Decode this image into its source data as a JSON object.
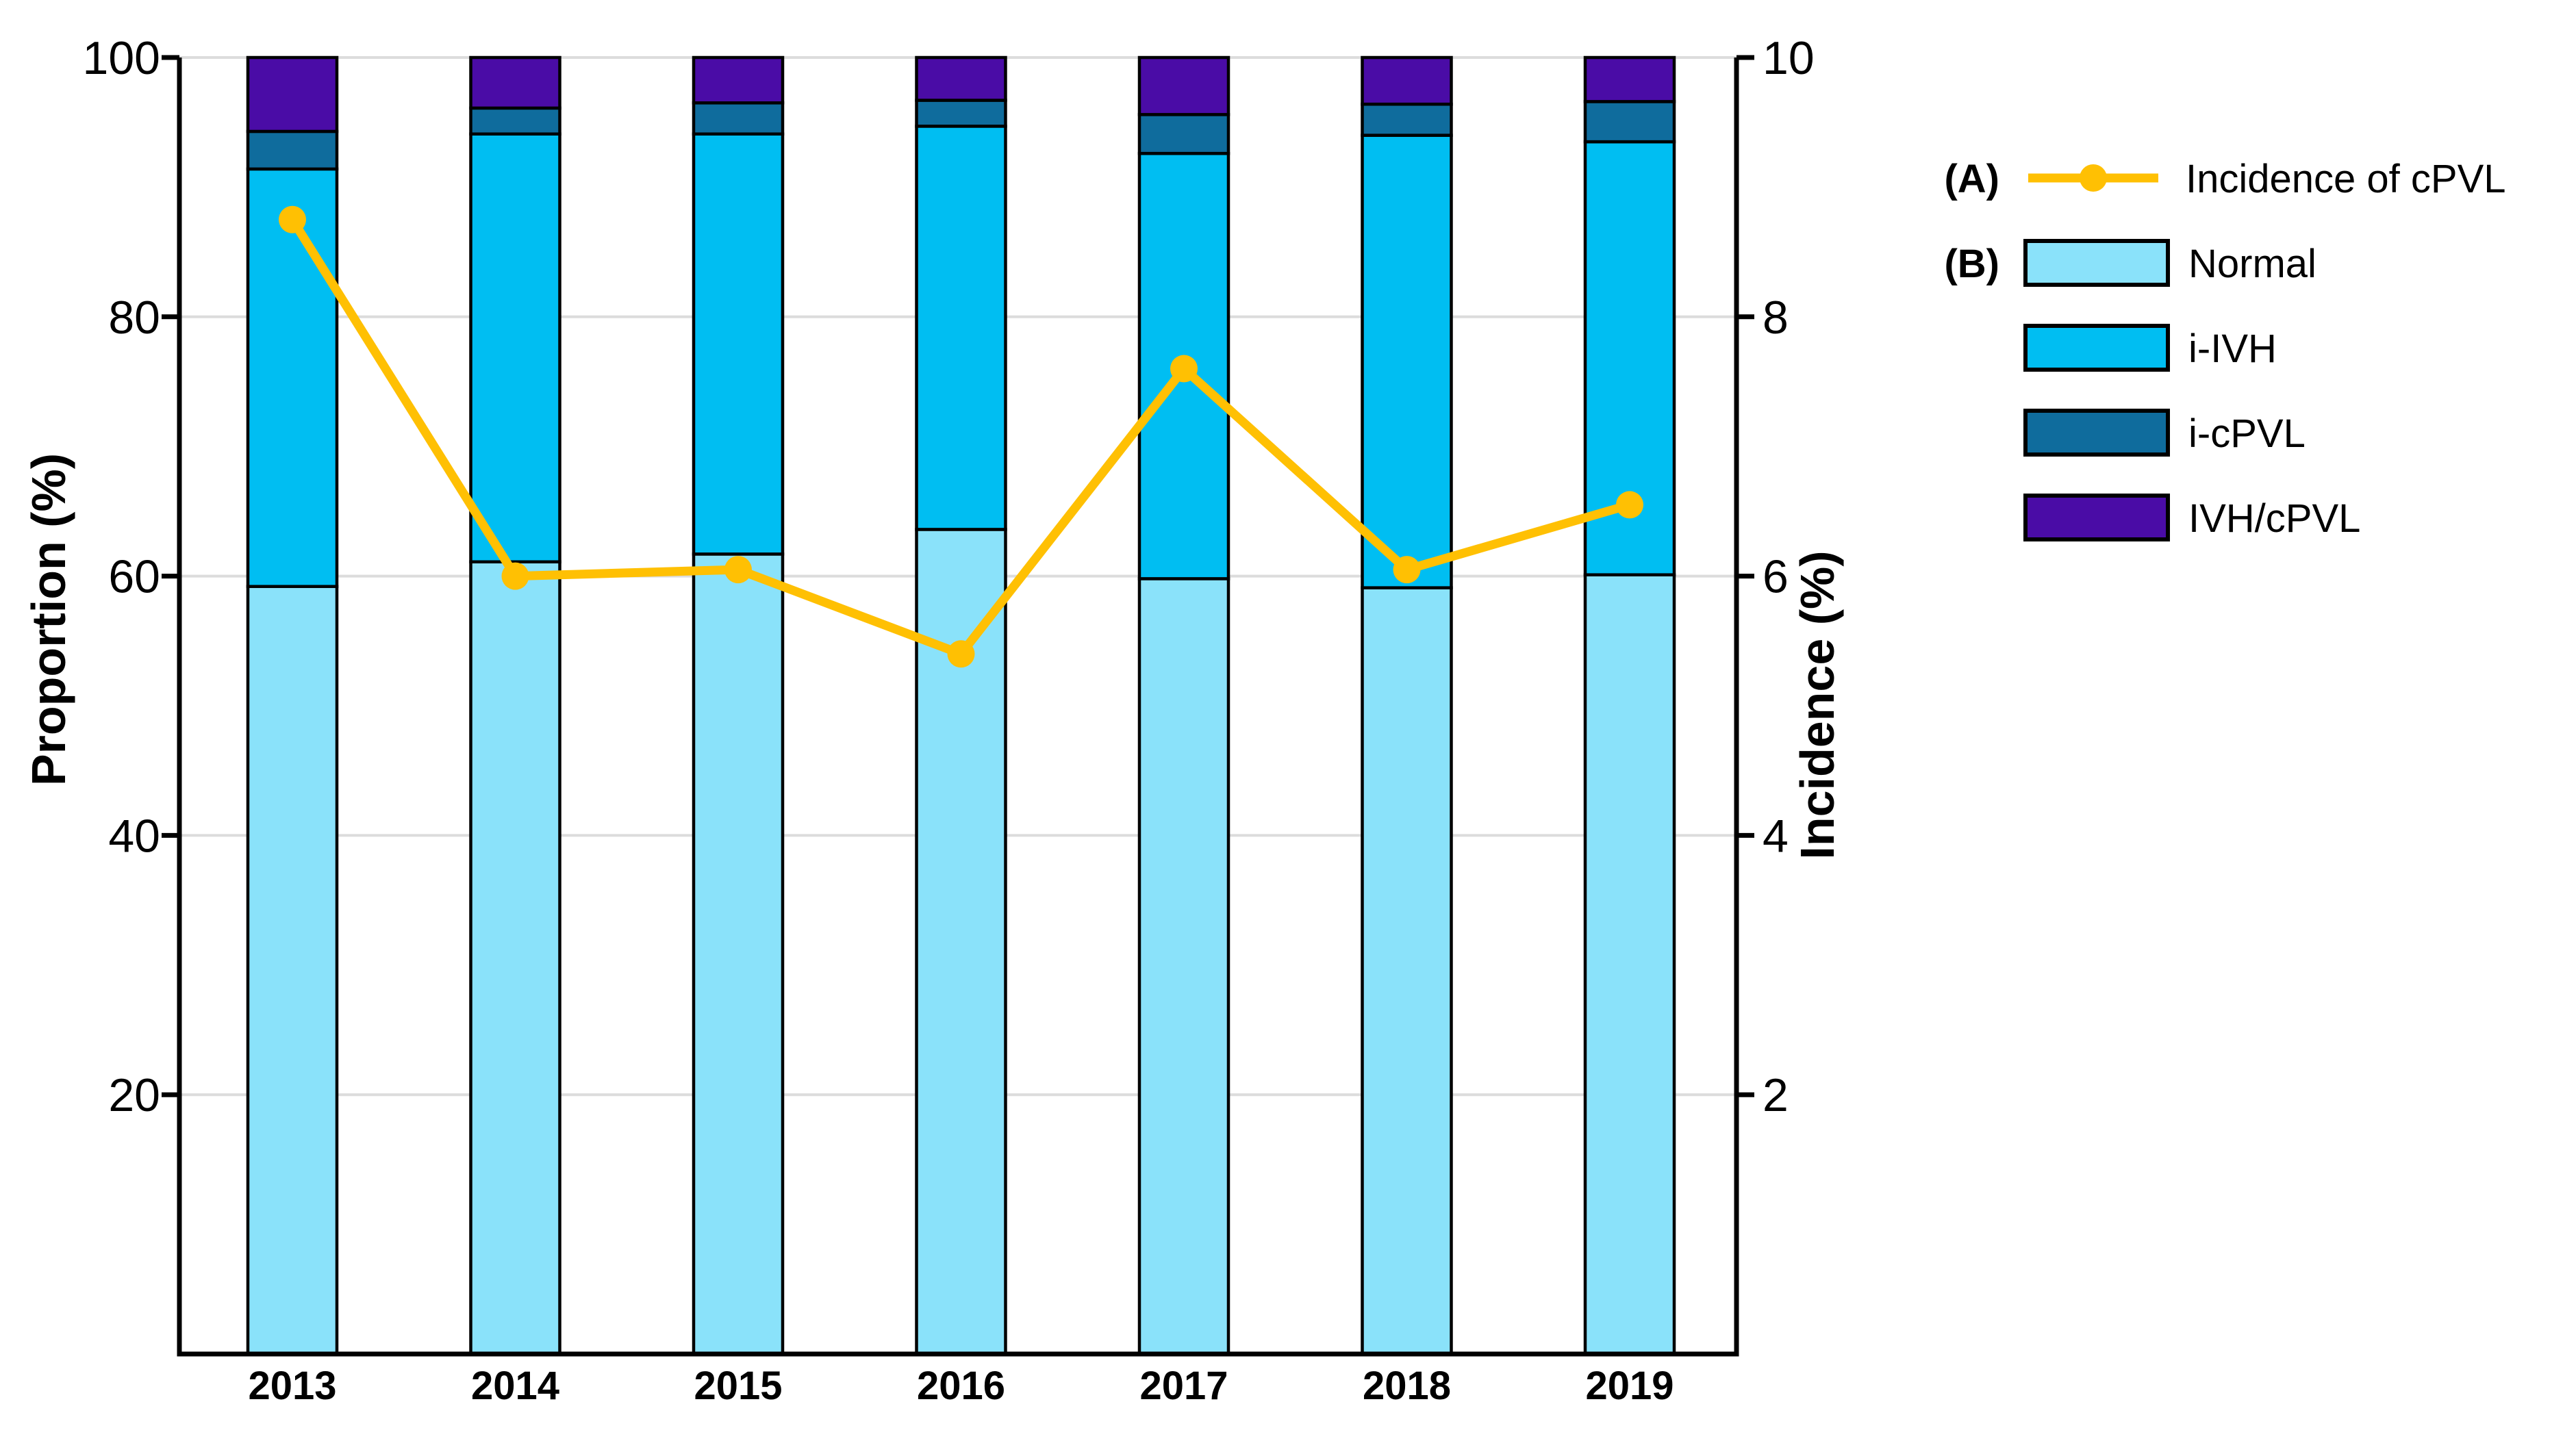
{
  "figure": {
    "background": "#FFFFFF",
    "panel_a_tag": "(A)",
    "panel_b_tag": "(B)"
  },
  "chart_data": {
    "type": "bar",
    "subtype": "stacked-percentage-bars-with-line-overlay",
    "title": "",
    "categories": [
      "2013",
      "2014",
      "2015",
      "2016",
      "2017",
      "2018",
      "2019"
    ],
    "series": [
      {
        "name": "Normal",
        "color": "#8AE2FA",
        "values": [
          59.2,
          61.1,
          61.7,
          63.6,
          59.8,
          59.1,
          60.1
        ]
      },
      {
        "name": "i-IVH",
        "color": "#00BEF2",
        "values": [
          32.2,
          33.0,
          32.4,
          31.1,
          32.8,
          34.9,
          33.4
        ]
      },
      {
        "name": "i-cPVL",
        "color": "#0F6C9D",
        "values": [
          2.9,
          2.0,
          2.4,
          2.0,
          3.0,
          2.4,
          3.1
        ]
      },
      {
        "name": "IVH/cPVL",
        "color": "#4A0CA6",
        "values": [
          5.7,
          3.9,
          3.5,
          3.3,
          4.4,
          3.6,
          3.4
        ]
      }
    ],
    "line": {
      "name": "Incidence of cPVL",
      "color": "#FFC003",
      "axis": "right",
      "values": [
        8.75,
        6.0,
        6.05,
        5.4,
        7.6,
        6.05,
        6.55
      ]
    },
    "left_axis": {
      "title": "Proportion (%)",
      "range": [
        0,
        100
      ],
      "ticks": [
        20,
        40,
        60,
        80,
        100
      ]
    },
    "right_axis": {
      "title": "Incidence (%)",
      "range": [
        0,
        10
      ],
      "ticks": [
        2,
        4,
        6,
        8,
        10
      ]
    },
    "legend_position": "right",
    "grid": "horizontal gridlines at each left-axis tick, drawn behind bars",
    "grid_color": "#DCDCDC",
    "axis_color": "#000000",
    "bar_outline_color": "#000000"
  }
}
